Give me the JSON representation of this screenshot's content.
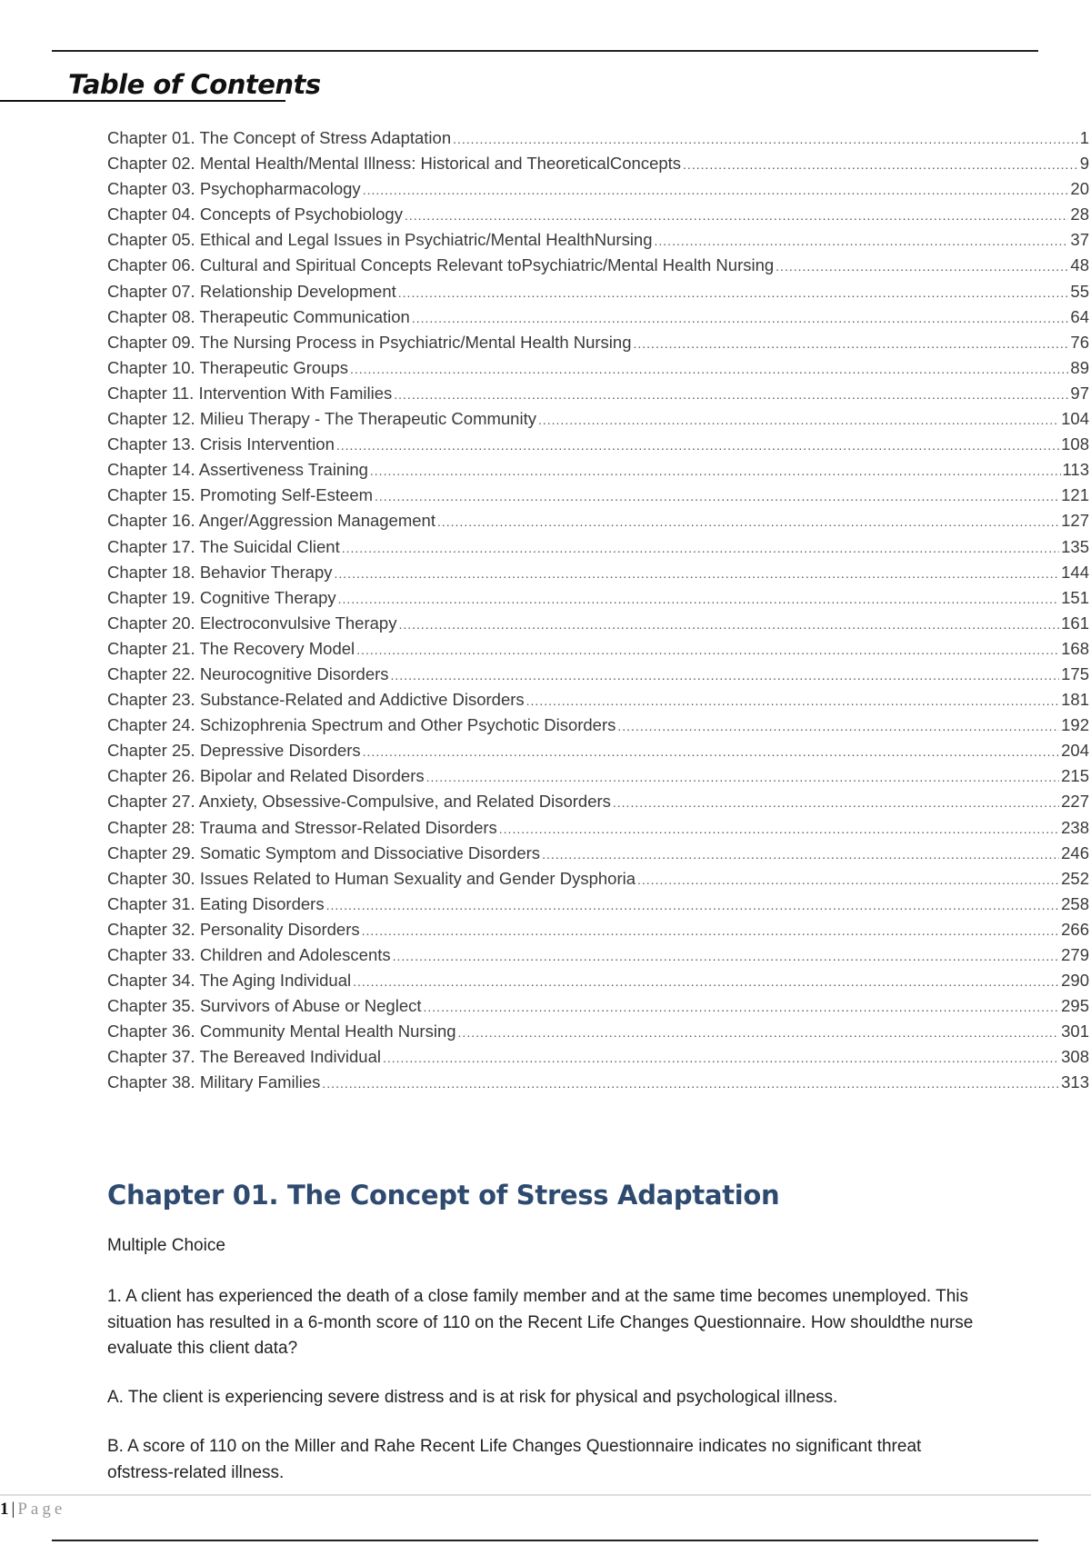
{
  "toc": {
    "title": "Table of Contents",
    "entries": [
      {
        "label": "Chapter 01. The Concept of Stress Adaptation",
        "page": "1"
      },
      {
        "label": "Chapter 02. Mental Health/Mental Illness: Historical and TheoreticalConcepts",
        "page": "9"
      },
      {
        "label": "Chapter 03. Psychopharmacology",
        "page": "20"
      },
      {
        "label": "Chapter 04. Concepts of Psychobiology",
        "page": "28"
      },
      {
        "label": "Chapter 05. Ethical and Legal Issues in Psychiatric/Mental HealthNursing",
        "page": "37"
      },
      {
        "label": "Chapter 06. Cultural and Spiritual Concepts Relevant toPsychiatric/Mental Health Nursing",
        "page": "48"
      },
      {
        "label": "Chapter 07. Relationship Development",
        "page": "55"
      },
      {
        "label": "Chapter 08. Therapeutic Communication",
        "page": "64"
      },
      {
        "label": "Chapter 09. The Nursing Process in Psychiatric/Mental Health Nursing",
        "page": "76"
      },
      {
        "label": "Chapter 10. Therapeutic Groups",
        "page": "89"
      },
      {
        "label": "Chapter 11. Intervention With Families",
        "page": "97"
      },
      {
        "label": "Chapter 12. Milieu Therapy - The Therapeutic Community",
        "page": "104"
      },
      {
        "label": "Chapter 13. Crisis Intervention",
        "page": "108"
      },
      {
        "label": "Chapter 14. Assertiveness Training",
        "page": "113"
      },
      {
        "label": "Chapter 15. Promoting Self-Esteem",
        "page": "121"
      },
      {
        "label": "Chapter 16. Anger/Aggression Management",
        "page": "127"
      },
      {
        "label": "Chapter 17. The Suicidal Client",
        "page": "135"
      },
      {
        "label": "Chapter 18. Behavior Therapy",
        "page": "144"
      },
      {
        "label": "Chapter 19. Cognitive Therapy",
        "page": "151"
      },
      {
        "label": "Chapter 20. Electroconvulsive Therapy",
        "page": "161"
      },
      {
        "label": "Chapter 21. The Recovery Model",
        "page": "168"
      },
      {
        "label": "Chapter 22. Neurocognitive Disorders",
        "page": "175"
      },
      {
        "label": "Chapter 23. Substance-Related and Addictive Disorders",
        "page": "181"
      },
      {
        "label": "Chapter 24. Schizophrenia Spectrum and Other Psychotic Disorders",
        "page": "192"
      },
      {
        "label": "Chapter 25. Depressive Disorders",
        "page": "204"
      },
      {
        "label": "Chapter 26. Bipolar and Related Disorders",
        "page": "215"
      },
      {
        "label": "Chapter 27. Anxiety, Obsessive-Compulsive, and Related Disorders",
        "page": "227"
      },
      {
        "label": "Chapter 28: Trauma and Stressor-Related Disorders",
        "page": "238"
      },
      {
        "label": "Chapter 29. Somatic Symptom and Dissociative Disorders",
        "page": "246"
      },
      {
        "label": "Chapter 30. Issues Related to Human Sexuality and Gender Dysphoria",
        "page": "252"
      },
      {
        "label": "Chapter 31. Eating Disorders",
        "page": "258"
      },
      {
        "label": "Chapter 32. Personality Disorders",
        "page": "266"
      },
      {
        "label": "Chapter 33. Children and Adolescents",
        "page": "279"
      },
      {
        "label": "Chapter 34. The Aging Individual",
        "page": "290"
      },
      {
        "label": "Chapter 35. Survivors of Abuse or Neglect",
        "page": "295"
      },
      {
        "label": "Chapter 36. Community Mental Health Nursing",
        "page": "301"
      },
      {
        "label": "Chapter 37. The Bereaved Individual",
        "page": "308"
      },
      {
        "label": "Chapter 38. Military Families",
        "page": "313"
      }
    ]
  },
  "chapter": {
    "heading": "Chapter 01. The Concept of Stress Adaptation",
    "section": "Multiple Choice",
    "question": "1. A client has experienced the death of a close family member and at the same time becomes unemployed. This situation has resulted in a 6-month score of 110 on the Recent Life Changes Questionnaire. How shouldthe nurse evaluate this client data?",
    "option_a": "A. The client is experiencing severe distress and is at risk for physical and psychological illness.",
    "option_b": "B. A score of 110 on the Miller and Rahe Recent Life Changes Questionnaire indicates no significant threat ofstress-related illness."
  },
  "footer": {
    "page_number": "1",
    "separator": "|",
    "page_label": "Page"
  }
}
